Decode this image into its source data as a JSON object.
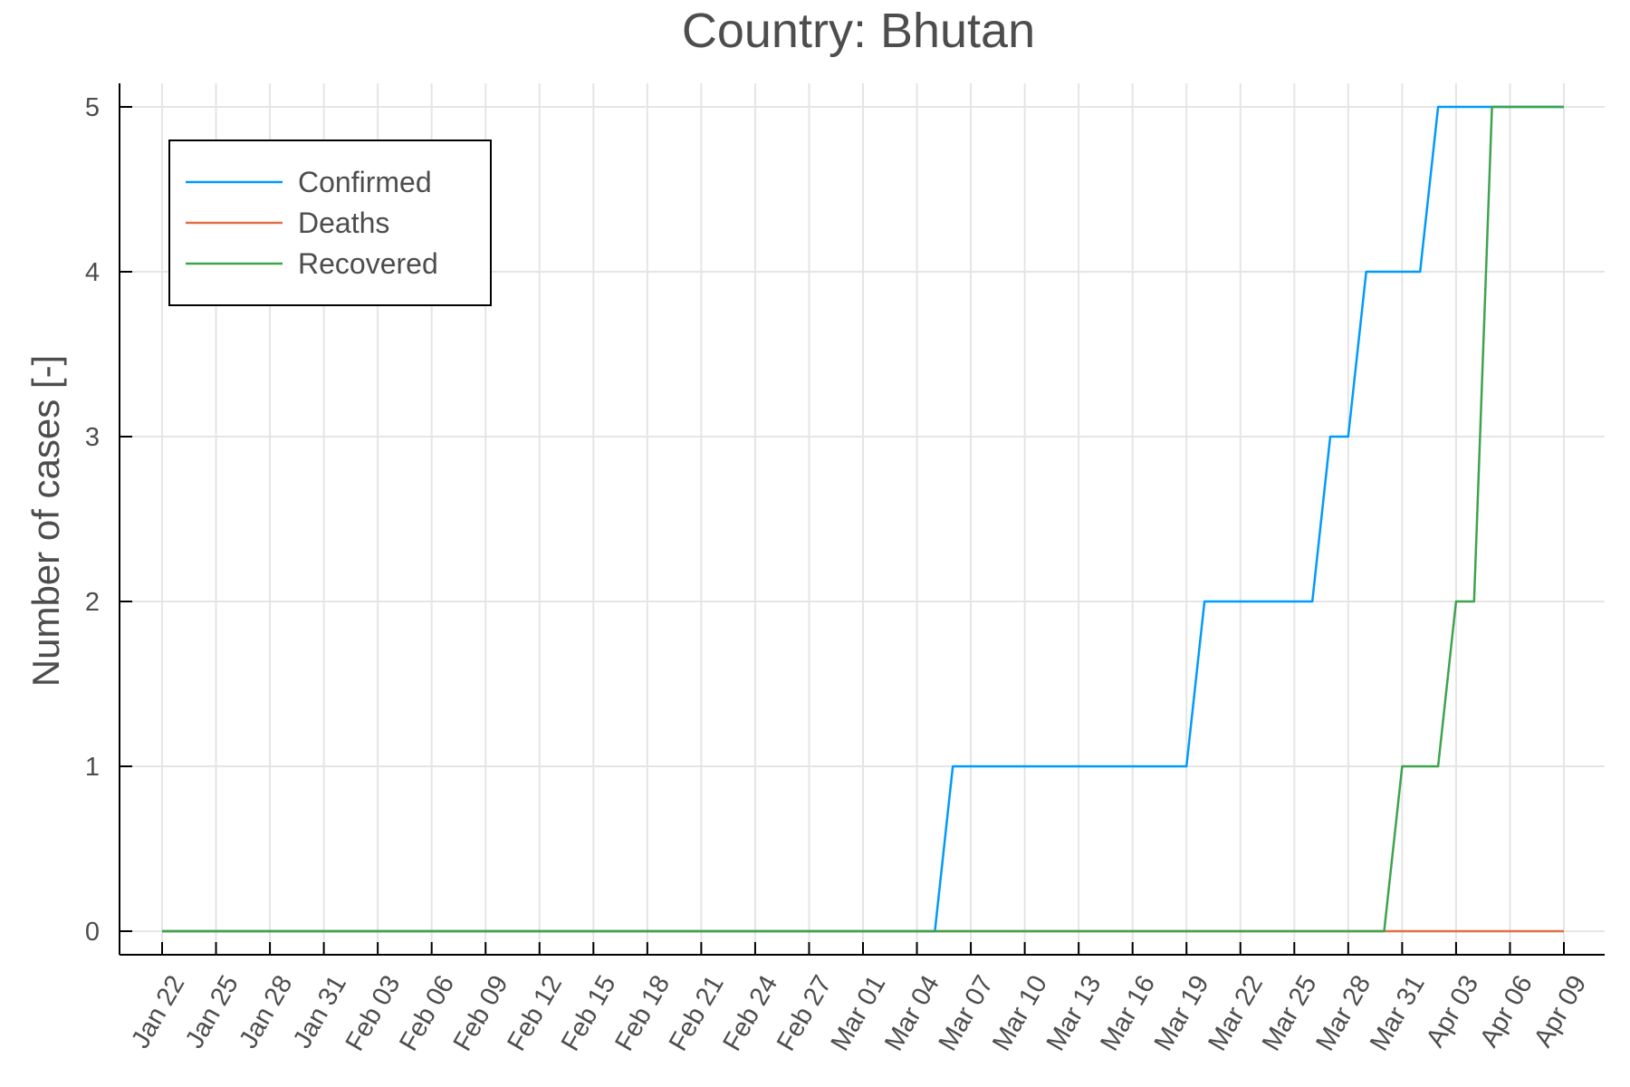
{
  "chart_data": {
    "type": "line",
    "title": "Country: Bhutan",
    "xlabel": "",
    "ylabel": "Number of cases [-]",
    "ylim": [
      0,
      5
    ],
    "yticks": [
      0,
      1,
      2,
      3,
      4,
      5
    ],
    "grid": true,
    "legend_position": "top-left",
    "x_tick_labels": [
      "Jan 22",
      "Jan 25",
      "Jan 28",
      "Jan 31",
      "Feb 03",
      "Feb 06",
      "Feb 09",
      "Feb 12",
      "Feb 15",
      "Feb 18",
      "Feb 21",
      "Feb 24",
      "Feb 27",
      "Mar 01",
      "Mar 04",
      "Mar 07",
      "Mar 10",
      "Mar 13",
      "Mar 16",
      "Mar 19",
      "Mar 22",
      "Mar 25",
      "Mar 28",
      "Mar 31",
      "Apr 03",
      "Apr 06",
      "Apr 09"
    ],
    "x_range": [
      "2020-01-22",
      "2020-04-09"
    ],
    "series": [
      {
        "name": "Confirmed",
        "color": "#009af9",
        "points": [
          {
            "x": "2020-01-22",
            "y": 0
          },
          {
            "x": "2020-03-05",
            "y": 0
          },
          {
            "x": "2020-03-06",
            "y": 1
          },
          {
            "x": "2020-03-19",
            "y": 1
          },
          {
            "x": "2020-03-20",
            "y": 2
          },
          {
            "x": "2020-03-26",
            "y": 2
          },
          {
            "x": "2020-03-27",
            "y": 3
          },
          {
            "x": "2020-03-28",
            "y": 3
          },
          {
            "x": "2020-03-29",
            "y": 4
          },
          {
            "x": "2020-04-01",
            "y": 4
          },
          {
            "x": "2020-04-02",
            "y": 5
          },
          {
            "x": "2020-04-09",
            "y": 5
          }
        ]
      },
      {
        "name": "Deaths",
        "color": "#e26f46",
        "points": [
          {
            "x": "2020-01-22",
            "y": 0
          },
          {
            "x": "2020-04-09",
            "y": 0
          }
        ]
      },
      {
        "name": "Recovered",
        "color": "#3da44d",
        "points": [
          {
            "x": "2020-01-22",
            "y": 0
          },
          {
            "x": "2020-03-30",
            "y": 0
          },
          {
            "x": "2020-03-31",
            "y": 1
          },
          {
            "x": "2020-04-02",
            "y": 1
          },
          {
            "x": "2020-04-03",
            "y": 2
          },
          {
            "x": "2020-04-04",
            "y": 2
          },
          {
            "x": "2020-04-05",
            "y": 5
          },
          {
            "x": "2020-04-09",
            "y": 5
          }
        ]
      }
    ]
  }
}
